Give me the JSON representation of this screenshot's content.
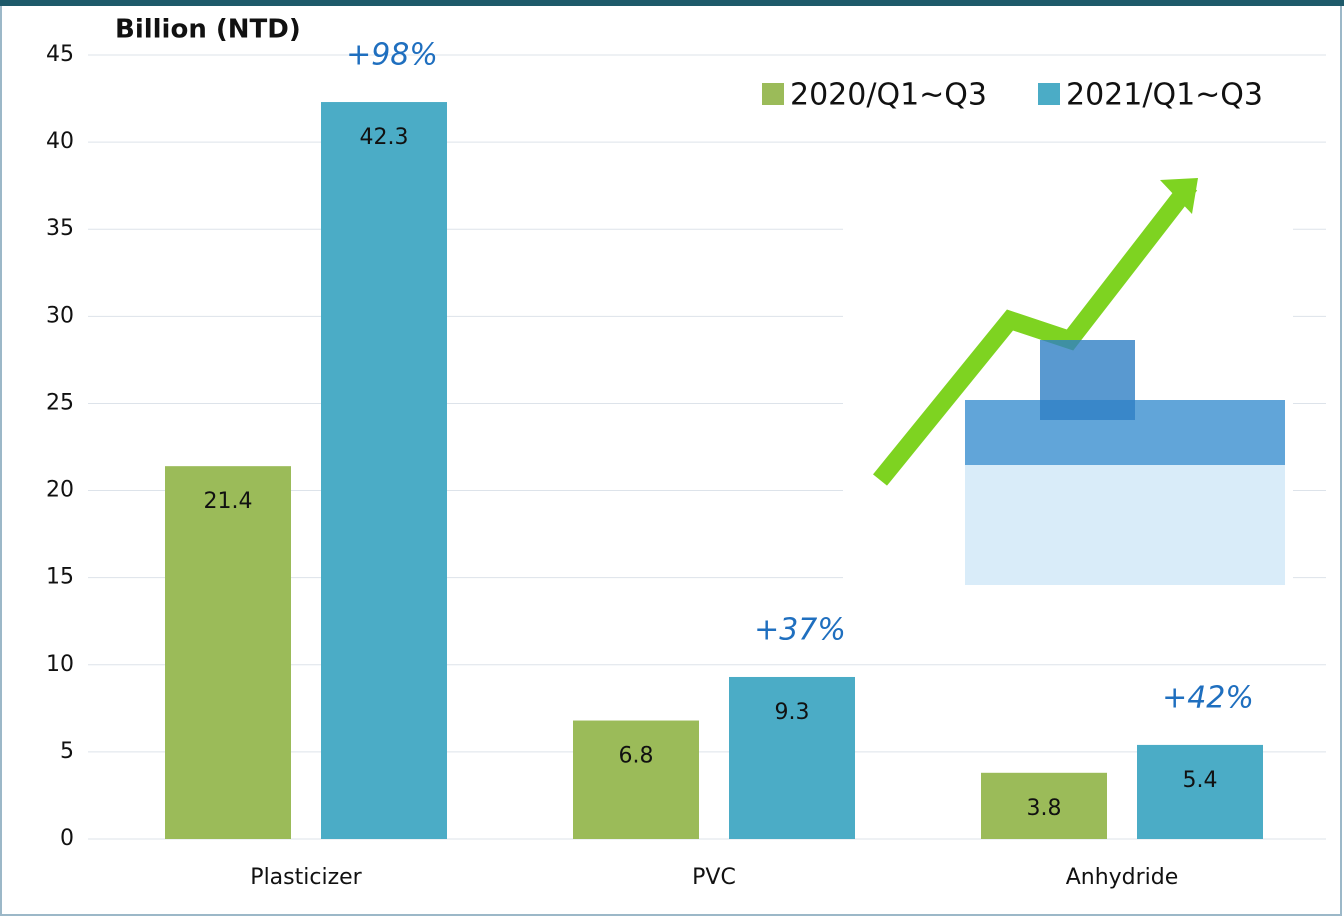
{
  "chart_data": {
    "type": "bar",
    "y_label": "Billion (NTD)",
    "categories": [
      "Plasticizer",
      "PVC",
      "Anhydride"
    ],
    "series": [
      {
        "name": "2020/Q1~Q3",
        "color": "#9bbb59",
        "values": [
          21.4,
          6.8,
          3.8
        ]
      },
      {
        "name": "2021/Q1~Q3",
        "color": "#4bacc6",
        "values": [
          42.3,
          9.3,
          5.4
        ]
      }
    ],
    "annotations": [
      "+98%",
      "+37%",
      "+42%"
    ],
    "ylim": [
      0,
      45
    ],
    "yticks": [
      0,
      5,
      10,
      15,
      20,
      25,
      30,
      35,
      40,
      45
    ],
    "grid": true,
    "legend": "top-right"
  }
}
